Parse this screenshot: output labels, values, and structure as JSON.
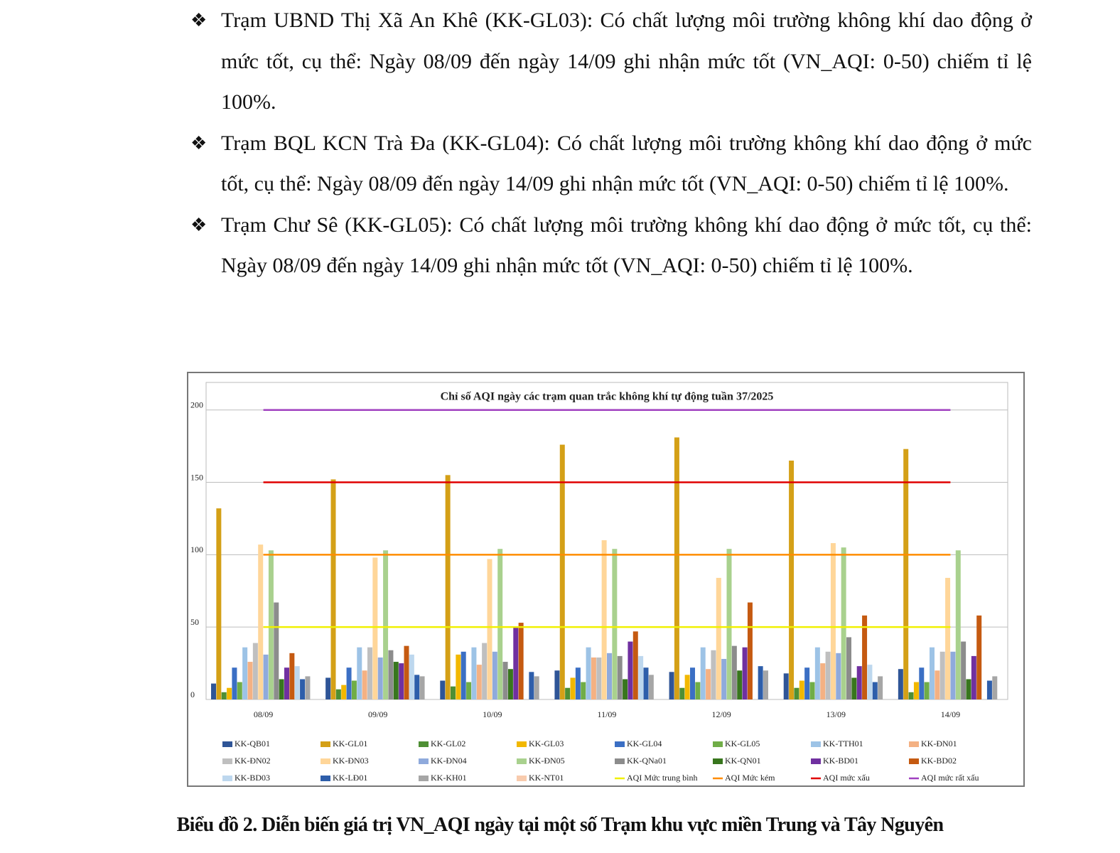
{
  "paragraphs": [
    "Trạm UBND Thị Xã An Khê (KK-GL03): Có chất lượng môi trường không khí dao động ở mức tốt, cụ thể: Ngày 08/09 đến ngày 14/09 ghi nhận mức tốt (VN_AQI: 0-50) chiếm tỉ lệ 100%.",
    "Trạm BQL KCN Trà Đa (KK-GL04): Có chất lượng môi trường không khí dao động ở mức tốt, cụ thể: Ngày 08/09 đến ngày 14/09 ghi nhận mức tốt (VN_AQI: 0-50) chiếm tỉ lệ 100%.",
    "Trạm Chư Sê (KK-GL05): Có chất lượng môi trường không khí dao động ở mức tốt, cụ thể: Ngày 08/09 đến ngày 14/09 ghi nhận mức tốt (VN_AQI: 0-50) chiếm tỉ lệ 100%."
  ],
  "chart_data": {
    "type": "bar",
    "title": "Chỉ số AQI ngày các trạm quan trắc không khí tự động tuần 37/2025",
    "categories": [
      "08/09",
      "09/09",
      "10/09",
      "11/09",
      "12/09",
      "13/09",
      "14/09"
    ],
    "ylim": [
      0,
      219
    ],
    "yticks": [
      0,
      50,
      100,
      150,
      200
    ],
    "grid": true,
    "series": [
      {
        "name": "KK-QB01",
        "color": "#2f5597",
        "values": [
          11,
          15,
          13,
          20,
          19,
          18,
          21
        ]
      },
      {
        "name": "KK-GL01",
        "color": "#d4a017",
        "values": [
          132,
          152,
          155,
          176,
          181,
          165,
          173
        ]
      },
      {
        "name": "KK-GL02",
        "color": "#4e8f34",
        "values": [
          5,
          7,
          9,
          8,
          8,
          8,
          5
        ]
      },
      {
        "name": "KK-GL03",
        "color": "#f2b800",
        "values": [
          8,
          10,
          31,
          15,
          17,
          13,
          12
        ]
      },
      {
        "name": "KK-GL04",
        "color": "#3b6fc4",
        "values": [
          22,
          22,
          33,
          22,
          22,
          22,
          22
        ]
      },
      {
        "name": "KK-GL05",
        "color": "#70ad47",
        "values": [
          12,
          13,
          12,
          12,
          12,
          12,
          12
        ]
      },
      {
        "name": "KK-TTH01",
        "color": "#9dc3e6",
        "values": [
          36,
          36,
          36,
          36,
          36,
          36,
          36
        ]
      },
      {
        "name": "KK-ĐN01",
        "color": "#f4b183",
        "values": [
          26,
          20,
          24,
          29,
          21,
          25,
          20
        ]
      },
      {
        "name": "KK-ĐN02",
        "color": "#bfbfbf",
        "values": [
          39,
          36,
          39,
          29,
          34,
          33,
          33
        ]
      },
      {
        "name": "KK-ĐN03",
        "color": "#ffd699",
        "values": [
          107,
          98,
          97,
          110,
          84,
          108,
          84
        ]
      },
      {
        "name": "KK-ĐN04",
        "color": "#8faadc",
        "values": [
          31,
          29,
          33,
          32,
          28,
          32,
          33
        ]
      },
      {
        "name": "KK-ĐN05",
        "color": "#a9d18e",
        "values": [
          103,
          103,
          104,
          104,
          104,
          105,
          103
        ]
      },
      {
        "name": "KK-QNa01",
        "color": "#8c8c8c",
        "values": [
          67,
          34,
          26,
          30,
          37,
          43,
          40
        ]
      },
      {
        "name": "KK-QN01",
        "color": "#38761d",
        "values": [
          14,
          26,
          21,
          14,
          20,
          15,
          14
        ]
      },
      {
        "name": "KK-BD01",
        "color": "#7030a0",
        "values": [
          22,
          25,
          50,
          40,
          36,
          23,
          30
        ]
      },
      {
        "name": "KK-BD02",
        "color": "#c55a11",
        "values": [
          32,
          37,
          53,
          47,
          67,
          58,
          58
        ]
      },
      {
        "name": "KK-BD03",
        "color": "#bdd7ee",
        "values": [
          23,
          31,
          null,
          30,
          null,
          24,
          null
        ]
      },
      {
        "name": "KK-LĐ01",
        "color": "#2e5eaa",
        "values": [
          14,
          17,
          19,
          22,
          23,
          12,
          13
        ]
      },
      {
        "name": "KK-KH01",
        "color": "#a6a6a6",
        "values": [
          16,
          16,
          16,
          17,
          20,
          16,
          16
        ]
      },
      {
        "name": "KK-NT01",
        "color": "#f8cbad",
        "values": [
          null,
          null,
          null,
          null,
          null,
          null,
          null
        ]
      },
      {
        "name": "AQI Mức trung bình",
        "color": "#f0f000",
        "type": "line",
        "values": [
          50,
          50,
          50,
          50,
          50,
          50,
          50
        ]
      },
      {
        "name": "AQI Mức kém",
        "color": "#ff8c00",
        "type": "line",
        "values": [
          100,
          100,
          100,
          100,
          100,
          100,
          100
        ]
      },
      {
        "name": "AQI mức xấu",
        "color": "#e00000",
        "type": "line",
        "values": [
          150,
          150,
          150,
          150,
          150,
          150,
          150
        ]
      },
      {
        "name": "AQI mức rất xấu",
        "color": "#a040c0",
        "type": "line",
        "values": [
          200,
          200,
          200,
          200,
          200,
          200,
          200
        ]
      }
    ]
  },
  "caption": "Biểu đồ 2. Diễn biến giá trị VN_AQI ngày tại một số Trạm khu vực miền Trung và Tây Nguyên"
}
